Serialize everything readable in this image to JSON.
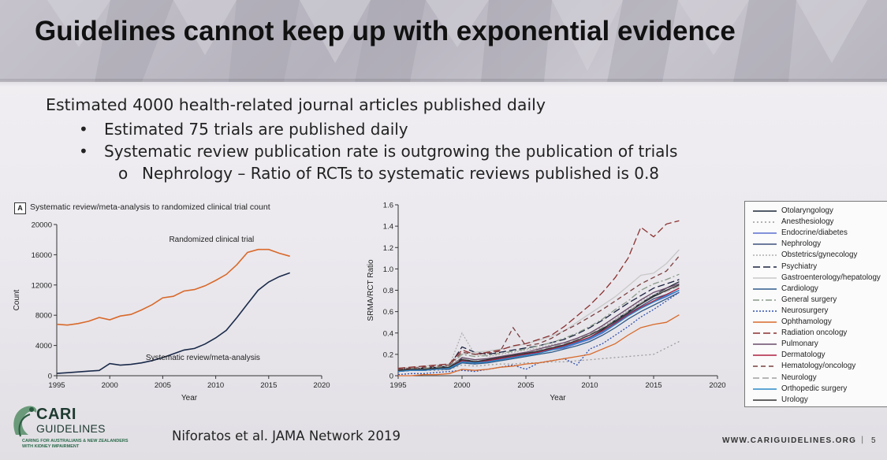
{
  "slide": {
    "title": "Guidelines cannot keep up with exponential evidence",
    "bullets": {
      "level0": "Estimated 4000 health-related journal articles published daily",
      "level1": [
        "Estimated 75 trials are published daily",
        "Systematic review publication rate  is outgrowing the publication of trials"
      ],
      "level2": "Nephrology – Ratio of RCTs to systematic reviews published is 0.8",
      "bullet_symbol": "•",
      "sub_bullet_symbol": "o"
    },
    "citation": "Niforatos et al. JAMA Network 2019",
    "website": "WWW.CARIGUIDELINES.ORG",
    "separator": "|",
    "page_number": "5",
    "logo": {
      "name_line1": "CARI",
      "name_line2": "GUIDELINES",
      "tagline_line1": "CARING FOR AUSTRALIANS & NEW ZEALANDERS",
      "tagline_line2": "WITH KIDNEY IMPAIRMENT"
    }
  },
  "chart_data": [
    {
      "type": "line",
      "panel_label": "A",
      "title": "Systematic review/meta-analysis to randomized clinical trial count",
      "xlabel": "Year",
      "ylabel": "Count",
      "xlim": [
        1995,
        2020
      ],
      "ylim": [
        0,
        20000
      ],
      "xticks": [
        1995,
        2000,
        2005,
        2010,
        2015,
        2020
      ],
      "yticks": [
        0,
        4000,
        8000,
        12000,
        16000,
        20000
      ],
      "ytick_labels": [
        "0",
        "4000",
        "8000",
        "12000",
        "16000",
        "20000"
      ],
      "x": [
        1995,
        1996,
        1997,
        1998,
        1999,
        2000,
        2001,
        2002,
        2003,
        2004,
        2005,
        2006,
        2007,
        2008,
        2009,
        2010,
        2011,
        2012,
        2013,
        2014,
        2015,
        2016,
        2017
      ],
      "series": [
        {
          "name": "Randomized clinical trial",
          "color": "#d9692a",
          "values": [
            6800,
            6700,
            6900,
            7200,
            7700,
            7400,
            7900,
            8100,
            8700,
            9400,
            10300,
            10500,
            11200,
            11400,
            11900,
            12600,
            13400,
            14700,
            16300,
            16700,
            16700,
            16200,
            15800
          ]
        },
        {
          "name": "Systematic review/meta-analysis",
          "color": "#1a2a4a",
          "values": [
            300,
            400,
            500,
            600,
            700,
            1600,
            1400,
            1500,
            1700,
            2000,
            2400,
            2900,
            3400,
            3600,
            4200,
            5000,
            6000,
            7700,
            9500,
            11300,
            12400,
            13100,
            13600
          ]
        }
      ]
    },
    {
      "type": "line",
      "title": "",
      "xlabel": "Year",
      "ylabel": "SRMA/RCT Ratio",
      "xlim": [
        1995,
        2020
      ],
      "ylim": [
        0,
        1.6
      ],
      "xticks": [
        1995,
        2000,
        2005,
        2010,
        2015,
        2020
      ],
      "yticks": [
        0,
        0.2,
        0.4,
        0.6,
        0.8,
        1.0,
        1.2,
        1.4,
        1.6
      ],
      "ytick_labels": [
        "0",
        "0.2",
        "0.4",
        "0.6",
        "0.8",
        "1.0",
        "1.2",
        "1.4",
        "1.6"
      ],
      "x": [
        1995,
        1996,
        1997,
        1998,
        1999,
        2000,
        2001,
        2002,
        2003,
        2004,
        2005,
        2006,
        2007,
        2008,
        2009,
        2010,
        2011,
        2012,
        2013,
        2014,
        2015,
        2016,
        2017
      ],
      "series": [
        {
          "name": "Otolaryngology",
          "color": "#1b2838",
          "dash": "",
          "values": [
            0.05,
            0.06,
            0.06,
            0.07,
            0.08,
            0.16,
            0.13,
            0.15,
            0.17,
            0.19,
            0.21,
            0.22,
            0.25,
            0.27,
            0.31,
            0.36,
            0.43,
            0.52,
            0.6,
            0.68,
            0.75,
            0.82,
            0.88
          ]
        },
        {
          "name": "Anesthesiology",
          "color": "#9a9a9a",
          "dash": "2 3",
          "values": [
            0.04,
            0.05,
            0.05,
            0.05,
            0.06,
            0.1,
            0.09,
            0.1,
            0.11,
            0.11,
            0.12,
            0.12,
            0.13,
            0.13,
            0.14,
            0.15,
            0.16,
            0.17,
            0.18,
            0.19,
            0.2,
            0.26,
            0.32
          ]
        },
        {
          "name": "Endocrine/diabetes",
          "color": "#5a6ed0",
          "dash": "",
          "values": [
            0.04,
            0.05,
            0.05,
            0.06,
            0.07,
            0.12,
            0.11,
            0.13,
            0.15,
            0.17,
            0.19,
            0.21,
            0.24,
            0.26,
            0.3,
            0.34,
            0.4,
            0.48,
            0.56,
            0.63,
            0.69,
            0.74,
            0.8
          ]
        },
        {
          "name": "Nephrology",
          "color": "#3d4f7c",
          "dash": "",
          "values": [
            0.05,
            0.05,
            0.06,
            0.06,
            0.07,
            0.14,
            0.12,
            0.14,
            0.16,
            0.18,
            0.2,
            0.22,
            0.25,
            0.28,
            0.31,
            0.36,
            0.42,
            0.5,
            0.58,
            0.65,
            0.72,
            0.76,
            0.82
          ]
        },
        {
          "name": "Obstetrics/gynecology",
          "color": "#b0b0b0",
          "dash": "2 2",
          "values": [
            0.06,
            0.07,
            0.07,
            0.08,
            0.09,
            0.4,
            0.2,
            0.18,
            0.2,
            0.22,
            0.24,
            0.26,
            0.29,
            0.31,
            0.35,
            0.4,
            0.46,
            0.53,
            0.62,
            0.7,
            0.76,
            0.8,
            0.84
          ]
        },
        {
          "name": "Psychiatry",
          "color": "#1b2240",
          "dash": "9 4",
          "values": [
            0.06,
            0.07,
            0.07,
            0.08,
            0.09,
            0.27,
            0.22,
            0.2,
            0.22,
            0.24,
            0.26,
            0.28,
            0.31,
            0.34,
            0.39,
            0.45,
            0.52,
            0.6,
            0.68,
            0.75,
            0.82,
            0.86,
            0.9
          ]
        },
        {
          "name": "Gastroenterology/hepatology",
          "color": "#c8c8c8",
          "dash": "",
          "values": [
            0.07,
            0.08,
            0.09,
            0.1,
            0.11,
            0.2,
            0.22,
            0.23,
            0.25,
            0.27,
            0.3,
            0.33,
            0.37,
            0.42,
            0.5,
            0.58,
            0.66,
            0.74,
            0.84,
            0.94,
            0.96,
            1.05,
            1.18
          ]
        },
        {
          "name": "Cardiology",
          "color": "#2e5b8a",
          "dash": "",
          "values": [
            0.04,
            0.05,
            0.05,
            0.06,
            0.06,
            0.12,
            0.11,
            0.12,
            0.14,
            0.16,
            0.18,
            0.2,
            0.22,
            0.25,
            0.28,
            0.32,
            0.38,
            0.45,
            0.53,
            0.6,
            0.66,
            0.72,
            0.78
          ]
        },
        {
          "name": "General surgery",
          "color": "#8a9a8a",
          "dash": "8 3 2 3",
          "values": [
            0.06,
            0.07,
            0.07,
            0.08,
            0.09,
            0.2,
            0.18,
            0.19,
            0.21,
            0.23,
            0.25,
            0.28,
            0.31,
            0.35,
            0.4,
            0.46,
            0.53,
            0.62,
            0.7,
            0.8,
            0.86,
            0.9,
            0.95
          ]
        },
        {
          "name": "Neurosurgery",
          "color": "#3050b0",
          "dash": "2 2",
          "values": [
            0.01,
            0.02,
            0.02,
            0.03,
            0.04,
            0.05,
            0.04,
            0.06,
            0.08,
            0.1,
            0.06,
            0.12,
            0.14,
            0.16,
            0.1,
            0.25,
            0.3,
            0.38,
            0.46,
            0.55,
            0.62,
            0.7,
            0.78
          ]
        },
        {
          "name": "Ophthamology",
          "color": "#d9692a",
          "dash": "",
          "values": [
            0.0,
            0.0,
            0.01,
            0.01,
            0.02,
            0.06,
            0.05,
            0.06,
            0.08,
            0.09,
            0.11,
            0.12,
            0.14,
            0.16,
            0.18,
            0.2,
            0.25,
            0.3,
            0.38,
            0.45,
            0.48,
            0.5,
            0.57
          ]
        },
        {
          "name": "Radiation oncology",
          "color": "#8a3030",
          "dash": "9 4",
          "values": [
            0.07,
            0.08,
            0.09,
            0.1,
            0.11,
            0.24,
            0.2,
            0.22,
            0.24,
            0.28,
            0.3,
            0.34,
            0.38,
            0.46,
            0.56,
            0.66,
            0.78,
            0.92,
            1.1,
            1.39,
            1.3,
            1.42,
            1.45
          ]
        },
        {
          "name": "Pulmonary",
          "color": "#6a4a6a",
          "dash": "",
          "values": [
            0.05,
            0.06,
            0.06,
            0.07,
            0.08,
            0.17,
            0.15,
            0.16,
            0.18,
            0.2,
            0.22,
            0.25,
            0.28,
            0.31,
            0.35,
            0.4,
            0.47,
            0.55,
            0.63,
            0.71,
            0.78,
            0.82,
            0.86
          ]
        },
        {
          "name": "Dermatology",
          "color": "#b02040",
          "dash": "",
          "values": [
            0.04,
            0.05,
            0.05,
            0.06,
            0.07,
            0.14,
            0.12,
            0.14,
            0.16,
            0.18,
            0.2,
            0.22,
            0.25,
            0.28,
            0.32,
            0.36,
            0.42,
            0.49,
            0.57,
            0.64,
            0.7,
            0.76,
            0.82
          ]
        },
        {
          "name": "Hematology/oncology",
          "color": "#7a4040",
          "dash": "6 4",
          "values": [
            0.06,
            0.07,
            0.08,
            0.09,
            0.1,
            0.22,
            0.2,
            0.21,
            0.23,
            0.45,
            0.28,
            0.3,
            0.35,
            0.42,
            0.48,
            0.55,
            0.62,
            0.7,
            0.78,
            0.86,
            0.92,
            0.98,
            1.12
          ]
        },
        {
          "name": "Neurology",
          "color": "#a0a0a0",
          "dash": "8 4",
          "values": [
            0.05,
            0.06,
            0.06,
            0.07,
            0.08,
            0.16,
            0.14,
            0.15,
            0.17,
            0.19,
            0.21,
            0.24,
            0.27,
            0.3,
            0.34,
            0.39,
            0.45,
            0.52,
            0.6,
            0.68,
            0.74,
            0.79,
            0.84
          ]
        },
        {
          "name": "Orthopedic surgery",
          "color": "#2a8ac8",
          "dash": "",
          "values": [
            0.04,
            0.05,
            0.05,
            0.06,
            0.07,
            0.13,
            0.12,
            0.13,
            0.15,
            0.17,
            0.19,
            0.21,
            0.24,
            0.27,
            0.31,
            0.35,
            0.41,
            0.48,
            0.56,
            0.63,
            0.69,
            0.75,
            0.8
          ]
        },
        {
          "name": "Urology",
          "color": "#303030",
          "dash": "",
          "values": [
            0.05,
            0.06,
            0.06,
            0.07,
            0.08,
            0.15,
            0.13,
            0.15,
            0.17,
            0.19,
            0.21,
            0.23,
            0.26,
            0.29,
            0.33,
            0.38,
            0.44,
            0.51,
            0.59,
            0.67,
            0.74,
            0.8,
            0.85
          ]
        }
      ]
    }
  ]
}
